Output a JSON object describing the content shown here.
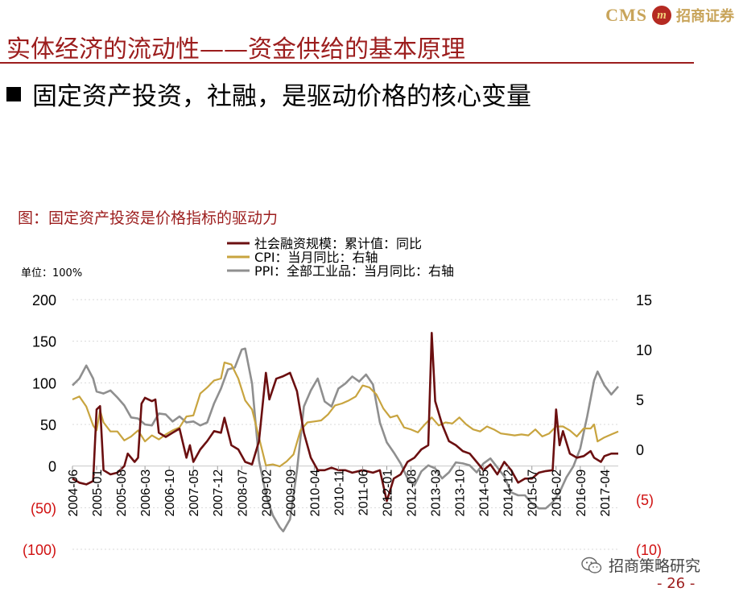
{
  "brand": {
    "logo_text": "CMS",
    "logo_mark": "m",
    "logo_cn": "招商证券"
  },
  "header": {
    "title": "实体经济的流动性——资金供给的基本原理",
    "subtitle": "固定资产投资，社融，是驱动价格的核心变量"
  },
  "figure": {
    "caption": "图：固定资产投资是价格指标的驱动力",
    "unit": "单位：100%"
  },
  "footer": {
    "brand": "招商策略研究",
    "page": "- 26 -"
  },
  "colors": {
    "sf": "#6b0f10",
    "cpi": "#c8a43f",
    "ppi": "#8f8f8f",
    "accent": "#9c1d1d",
    "neg_label": "#d01010"
  },
  "chart_data": {
    "type": "line",
    "title": "",
    "x_tick_labels": [
      "2004-06",
      "2005-01",
      "2005-08",
      "2006-03",
      "2006-10",
      "2007-05",
      "2007-12",
      "2008-07",
      "2009-02",
      "2009-09",
      "2010-04",
      "2010-11",
      "2011-06",
      "2012-01",
      "2012-08",
      "2013-03",
      "2013-10",
      "2014-05",
      "2014-12",
      "2015-07",
      "2016-02",
      "2016-09",
      "2017-04"
    ],
    "x_range": [
      "2004-06",
      "2017-08"
    ],
    "y_left": {
      "min": -100,
      "max": 200,
      "ticks": [
        "(100)",
        "(50)",
        "0",
        "50",
        "100",
        "150",
        "200"
      ]
    },
    "y_right": {
      "min": -10,
      "max": 15,
      "ticks": [
        "(10)",
        "(5)",
        "0",
        "5",
        "10",
        "15"
      ]
    },
    "legend": [
      "社会融资规模：累计值：同比",
      "CPI：当月同比：右轴",
      "PPI：全部工业品：当月同比：右轴"
    ],
    "legend_position": "top-center",
    "series": [
      {
        "name": "社会融资规模：累计值：同比",
        "axis": "left",
        "key": "sf",
        "points": [
          [
            "2004-06",
            -15
          ],
          [
            "2004-08",
            -20
          ],
          [
            "2004-10",
            -22
          ],
          [
            "2004-12",
            -18
          ],
          [
            "2005-01",
            68
          ],
          [
            "2005-02",
            72
          ],
          [
            "2005-03",
            -5
          ],
          [
            "2005-05",
            -10
          ],
          [
            "2005-07",
            -8
          ],
          [
            "2005-09",
            0
          ],
          [
            "2005-10",
            15
          ],
          [
            "2005-12",
            5
          ],
          [
            "2006-01",
            10
          ],
          [
            "2006-02",
            75
          ],
          [
            "2006-03",
            82
          ],
          [
            "2006-05",
            78
          ],
          [
            "2006-06",
            80
          ],
          [
            "2006-07",
            40
          ],
          [
            "2006-09",
            35
          ],
          [
            "2006-11",
            40
          ],
          [
            "2007-01",
            45
          ],
          [
            "2007-03",
            10
          ],
          [
            "2007-04",
            25
          ],
          [
            "2007-05",
            5
          ],
          [
            "2007-07",
            20
          ],
          [
            "2007-09",
            30
          ],
          [
            "2007-11",
            42
          ],
          [
            "2008-01",
            40
          ],
          [
            "2008-02",
            58
          ],
          [
            "2008-04",
            25
          ],
          [
            "2008-06",
            20
          ],
          [
            "2008-08",
            5
          ],
          [
            "2008-10",
            2
          ],
          [
            "2008-12",
            30
          ],
          [
            "2009-02",
            112
          ],
          [
            "2009-03",
            80
          ],
          [
            "2009-05",
            105
          ],
          [
            "2009-07",
            108
          ],
          [
            "2009-09",
            112
          ],
          [
            "2009-11",
            90
          ],
          [
            "2010-01",
            40
          ],
          [
            "2010-03",
            10
          ],
          [
            "2010-05",
            -5
          ],
          [
            "2010-07",
            -5
          ],
          [
            "2010-09",
            -2
          ],
          [
            "2010-11",
            -5
          ],
          [
            "2011-01",
            -5
          ],
          [
            "2011-03",
            -8
          ],
          [
            "2011-06",
            -5
          ],
          [
            "2011-09",
            -8
          ],
          [
            "2011-11",
            -5
          ],
          [
            "2012-01",
            -42
          ],
          [
            "2012-03",
            -15
          ],
          [
            "2012-05",
            -10
          ],
          [
            "2012-07",
            5
          ],
          [
            "2012-09",
            10
          ],
          [
            "2012-11",
            20
          ],
          [
            "2013-01",
            25
          ],
          [
            "2013-02",
            160
          ],
          [
            "2013-03",
            78
          ],
          [
            "2013-05",
            50
          ],
          [
            "2013-07",
            30
          ],
          [
            "2013-09",
            25
          ],
          [
            "2013-11",
            18
          ],
          [
            "2014-01",
            15
          ],
          [
            "2014-03",
            5
          ],
          [
            "2014-05",
            -5
          ],
          [
            "2014-07",
            2
          ],
          [
            "2014-09",
            -10
          ],
          [
            "2014-11",
            5
          ],
          [
            "2015-01",
            -5
          ],
          [
            "2015-03",
            -20
          ],
          [
            "2015-05",
            -15
          ],
          [
            "2015-07",
            -15
          ],
          [
            "2015-09",
            -8
          ],
          [
            "2015-11",
            -6
          ],
          [
            "2016-01",
            -5
          ],
          [
            "2016-02",
            68
          ],
          [
            "2016-03",
            25
          ],
          [
            "2016-04",
            42
          ],
          [
            "2016-06",
            15
          ],
          [
            "2016-08",
            10
          ],
          [
            "2016-10",
            12
          ],
          [
            "2016-12",
            18
          ],
          [
            "2017-01",
            10
          ],
          [
            "2017-03",
            5
          ],
          [
            "2017-04",
            12
          ],
          [
            "2017-06",
            15
          ],
          [
            "2017-08",
            15
          ]
        ]
      },
      {
        "name": "CPI：当月同比：右轴",
        "axis": "right",
        "key": "cpi",
        "points": [
          [
            "2004-06",
            5.0
          ],
          [
            "2004-08",
            5.3
          ],
          [
            "2004-10",
            4.3
          ],
          [
            "2004-12",
            2.4
          ],
          [
            "2005-01",
            1.9
          ],
          [
            "2005-02",
            3.9
          ],
          [
            "2005-03",
            2.7
          ],
          [
            "2005-05",
            1.8
          ],
          [
            "2005-07",
            1.8
          ],
          [
            "2005-09",
            0.9
          ],
          [
            "2005-11",
            1.3
          ],
          [
            "2006-01",
            1.9
          ],
          [
            "2006-03",
            0.8
          ],
          [
            "2006-05",
            1.4
          ],
          [
            "2006-07",
            1.0
          ],
          [
            "2006-09",
            1.5
          ],
          [
            "2006-11",
            1.9
          ],
          [
            "2007-01",
            2.2
          ],
          [
            "2007-03",
            3.3
          ],
          [
            "2007-05",
            3.4
          ],
          [
            "2007-07",
            5.6
          ],
          [
            "2007-09",
            6.2
          ],
          [
            "2007-11",
            6.9
          ],
          [
            "2008-01",
            7.1
          ],
          [
            "2008-02",
            8.7
          ],
          [
            "2008-04",
            8.5
          ],
          [
            "2008-06",
            7.1
          ],
          [
            "2008-08",
            4.9
          ],
          [
            "2008-10",
            4.0
          ],
          [
            "2008-12",
            1.2
          ],
          [
            "2009-02",
            -1.6
          ],
          [
            "2009-04",
            -1.5
          ],
          [
            "2009-06",
            -1.7
          ],
          [
            "2009-08",
            -1.2
          ],
          [
            "2009-10",
            -0.5
          ],
          [
            "2009-12",
            1.9
          ],
          [
            "2010-02",
            2.7
          ],
          [
            "2010-04",
            2.8
          ],
          [
            "2010-06",
            2.9
          ],
          [
            "2010-08",
            3.5
          ],
          [
            "2010-10",
            4.4
          ],
          [
            "2010-12",
            4.6
          ],
          [
            "2011-02",
            4.9
          ],
          [
            "2011-04",
            5.3
          ],
          [
            "2011-06",
            6.4
          ],
          [
            "2011-08",
            6.2
          ],
          [
            "2011-10",
            5.5
          ],
          [
            "2011-12",
            4.1
          ],
          [
            "2012-02",
            3.2
          ],
          [
            "2012-04",
            3.4
          ],
          [
            "2012-06",
            2.2
          ],
          [
            "2012-08",
            2.0
          ],
          [
            "2012-10",
            1.7
          ],
          [
            "2012-12",
            2.5
          ],
          [
            "2013-02",
            3.2
          ],
          [
            "2013-04",
            2.4
          ],
          [
            "2013-06",
            2.7
          ],
          [
            "2013-08",
            2.6
          ],
          [
            "2013-10",
            3.2
          ],
          [
            "2013-12",
            2.5
          ],
          [
            "2014-02",
            2.0
          ],
          [
            "2014-04",
            1.8
          ],
          [
            "2014-06",
            2.3
          ],
          [
            "2014-08",
            2.0
          ],
          [
            "2014-10",
            1.6
          ],
          [
            "2014-12",
            1.5
          ],
          [
            "2015-02",
            1.4
          ],
          [
            "2015-04",
            1.5
          ],
          [
            "2015-06",
            1.4
          ],
          [
            "2015-08",
            2.0
          ],
          [
            "2015-10",
            1.3
          ],
          [
            "2015-12",
            1.6
          ],
          [
            "2016-02",
            2.3
          ],
          [
            "2016-04",
            2.3
          ],
          [
            "2016-06",
            1.9
          ],
          [
            "2016-08",
            1.3
          ],
          [
            "2016-10",
            2.1
          ],
          [
            "2016-12",
            2.1
          ],
          [
            "2017-01",
            2.5
          ],
          [
            "2017-02",
            0.8
          ],
          [
            "2017-04",
            1.2
          ],
          [
            "2017-06",
            1.5
          ],
          [
            "2017-08",
            1.8
          ]
        ]
      },
      {
        "name": "PPI：全部工业品：当月同比：右轴",
        "axis": "right",
        "key": "ppi",
        "points": [
          [
            "2004-06",
            6.4
          ],
          [
            "2004-08",
            7.1
          ],
          [
            "2004-10",
            8.4
          ],
          [
            "2004-12",
            7.1
          ],
          [
            "2005-01",
            5.8
          ],
          [
            "2005-03",
            5.6
          ],
          [
            "2005-05",
            5.9
          ],
          [
            "2005-07",
            5.2
          ],
          [
            "2005-09",
            4.4
          ],
          [
            "2005-11",
            3.2
          ],
          [
            "2006-01",
            3.1
          ],
          [
            "2006-03",
            2.5
          ],
          [
            "2006-05",
            2.4
          ],
          [
            "2006-07",
            3.6
          ],
          [
            "2006-09",
            3.5
          ],
          [
            "2006-11",
            2.8
          ],
          [
            "2007-01",
            3.3
          ],
          [
            "2007-03",
            2.7
          ],
          [
            "2007-05",
            2.8
          ],
          [
            "2007-07",
            2.4
          ],
          [
            "2007-09",
            2.7
          ],
          [
            "2007-11",
            4.6
          ],
          [
            "2008-01",
            6.1
          ],
          [
            "2008-03",
            8.0
          ],
          [
            "2008-05",
            8.2
          ],
          [
            "2008-07",
            10.0
          ],
          [
            "2008-08",
            10.1
          ],
          [
            "2008-10",
            6.6
          ],
          [
            "2008-12",
            -1.1
          ],
          [
            "2009-02",
            -4.5
          ],
          [
            "2009-04",
            -6.6
          ],
          [
            "2009-06",
            -7.8
          ],
          [
            "2009-07",
            -8.2
          ],
          [
            "2009-09",
            -7.0
          ],
          [
            "2009-11",
            -2.1
          ],
          [
            "2010-01",
            4.3
          ],
          [
            "2010-03",
            5.9
          ],
          [
            "2010-05",
            7.1
          ],
          [
            "2010-07",
            4.8
          ],
          [
            "2010-09",
            4.3
          ],
          [
            "2010-11",
            6.1
          ],
          [
            "2011-01",
            6.6
          ],
          [
            "2011-03",
            7.3
          ],
          [
            "2011-05",
            6.8
          ],
          [
            "2011-07",
            7.5
          ],
          [
            "2011-09",
            6.5
          ],
          [
            "2011-11",
            2.7
          ],
          [
            "2012-01",
            0.7
          ],
          [
            "2012-03",
            -0.3
          ],
          [
            "2012-05",
            -1.4
          ],
          [
            "2012-07",
            -2.9
          ],
          [
            "2012-09",
            -3.6
          ],
          [
            "2012-11",
            -2.2
          ],
          [
            "2013-01",
            -1.6
          ],
          [
            "2013-03",
            -1.9
          ],
          [
            "2013-05",
            -2.9
          ],
          [
            "2013-07",
            -2.3
          ],
          [
            "2013-09",
            -1.3
          ],
          [
            "2013-11",
            -1.4
          ],
          [
            "2014-01",
            -1.6
          ],
          [
            "2014-03",
            -2.3
          ],
          [
            "2014-05",
            -1.4
          ],
          [
            "2014-07",
            -0.9
          ],
          [
            "2014-09",
            -1.8
          ],
          [
            "2014-11",
            -2.7
          ],
          [
            "2015-01",
            -4.3
          ],
          [
            "2015-03",
            -4.6
          ],
          [
            "2015-05",
            -4.6
          ],
          [
            "2015-07",
            -5.4
          ],
          [
            "2015-09",
            -5.9
          ],
          [
            "2015-11",
            -5.9
          ],
          [
            "2016-01",
            -5.3
          ],
          [
            "2016-03",
            -4.3
          ],
          [
            "2016-05",
            -2.8
          ],
          [
            "2016-07",
            -1.7
          ],
          [
            "2016-09",
            0.1
          ],
          [
            "2016-11",
            3.3
          ],
          [
            "2017-01",
            6.9
          ],
          [
            "2017-02",
            7.8
          ],
          [
            "2017-04",
            6.4
          ],
          [
            "2017-06",
            5.5
          ],
          [
            "2017-08",
            6.3
          ]
        ]
      }
    ]
  }
}
